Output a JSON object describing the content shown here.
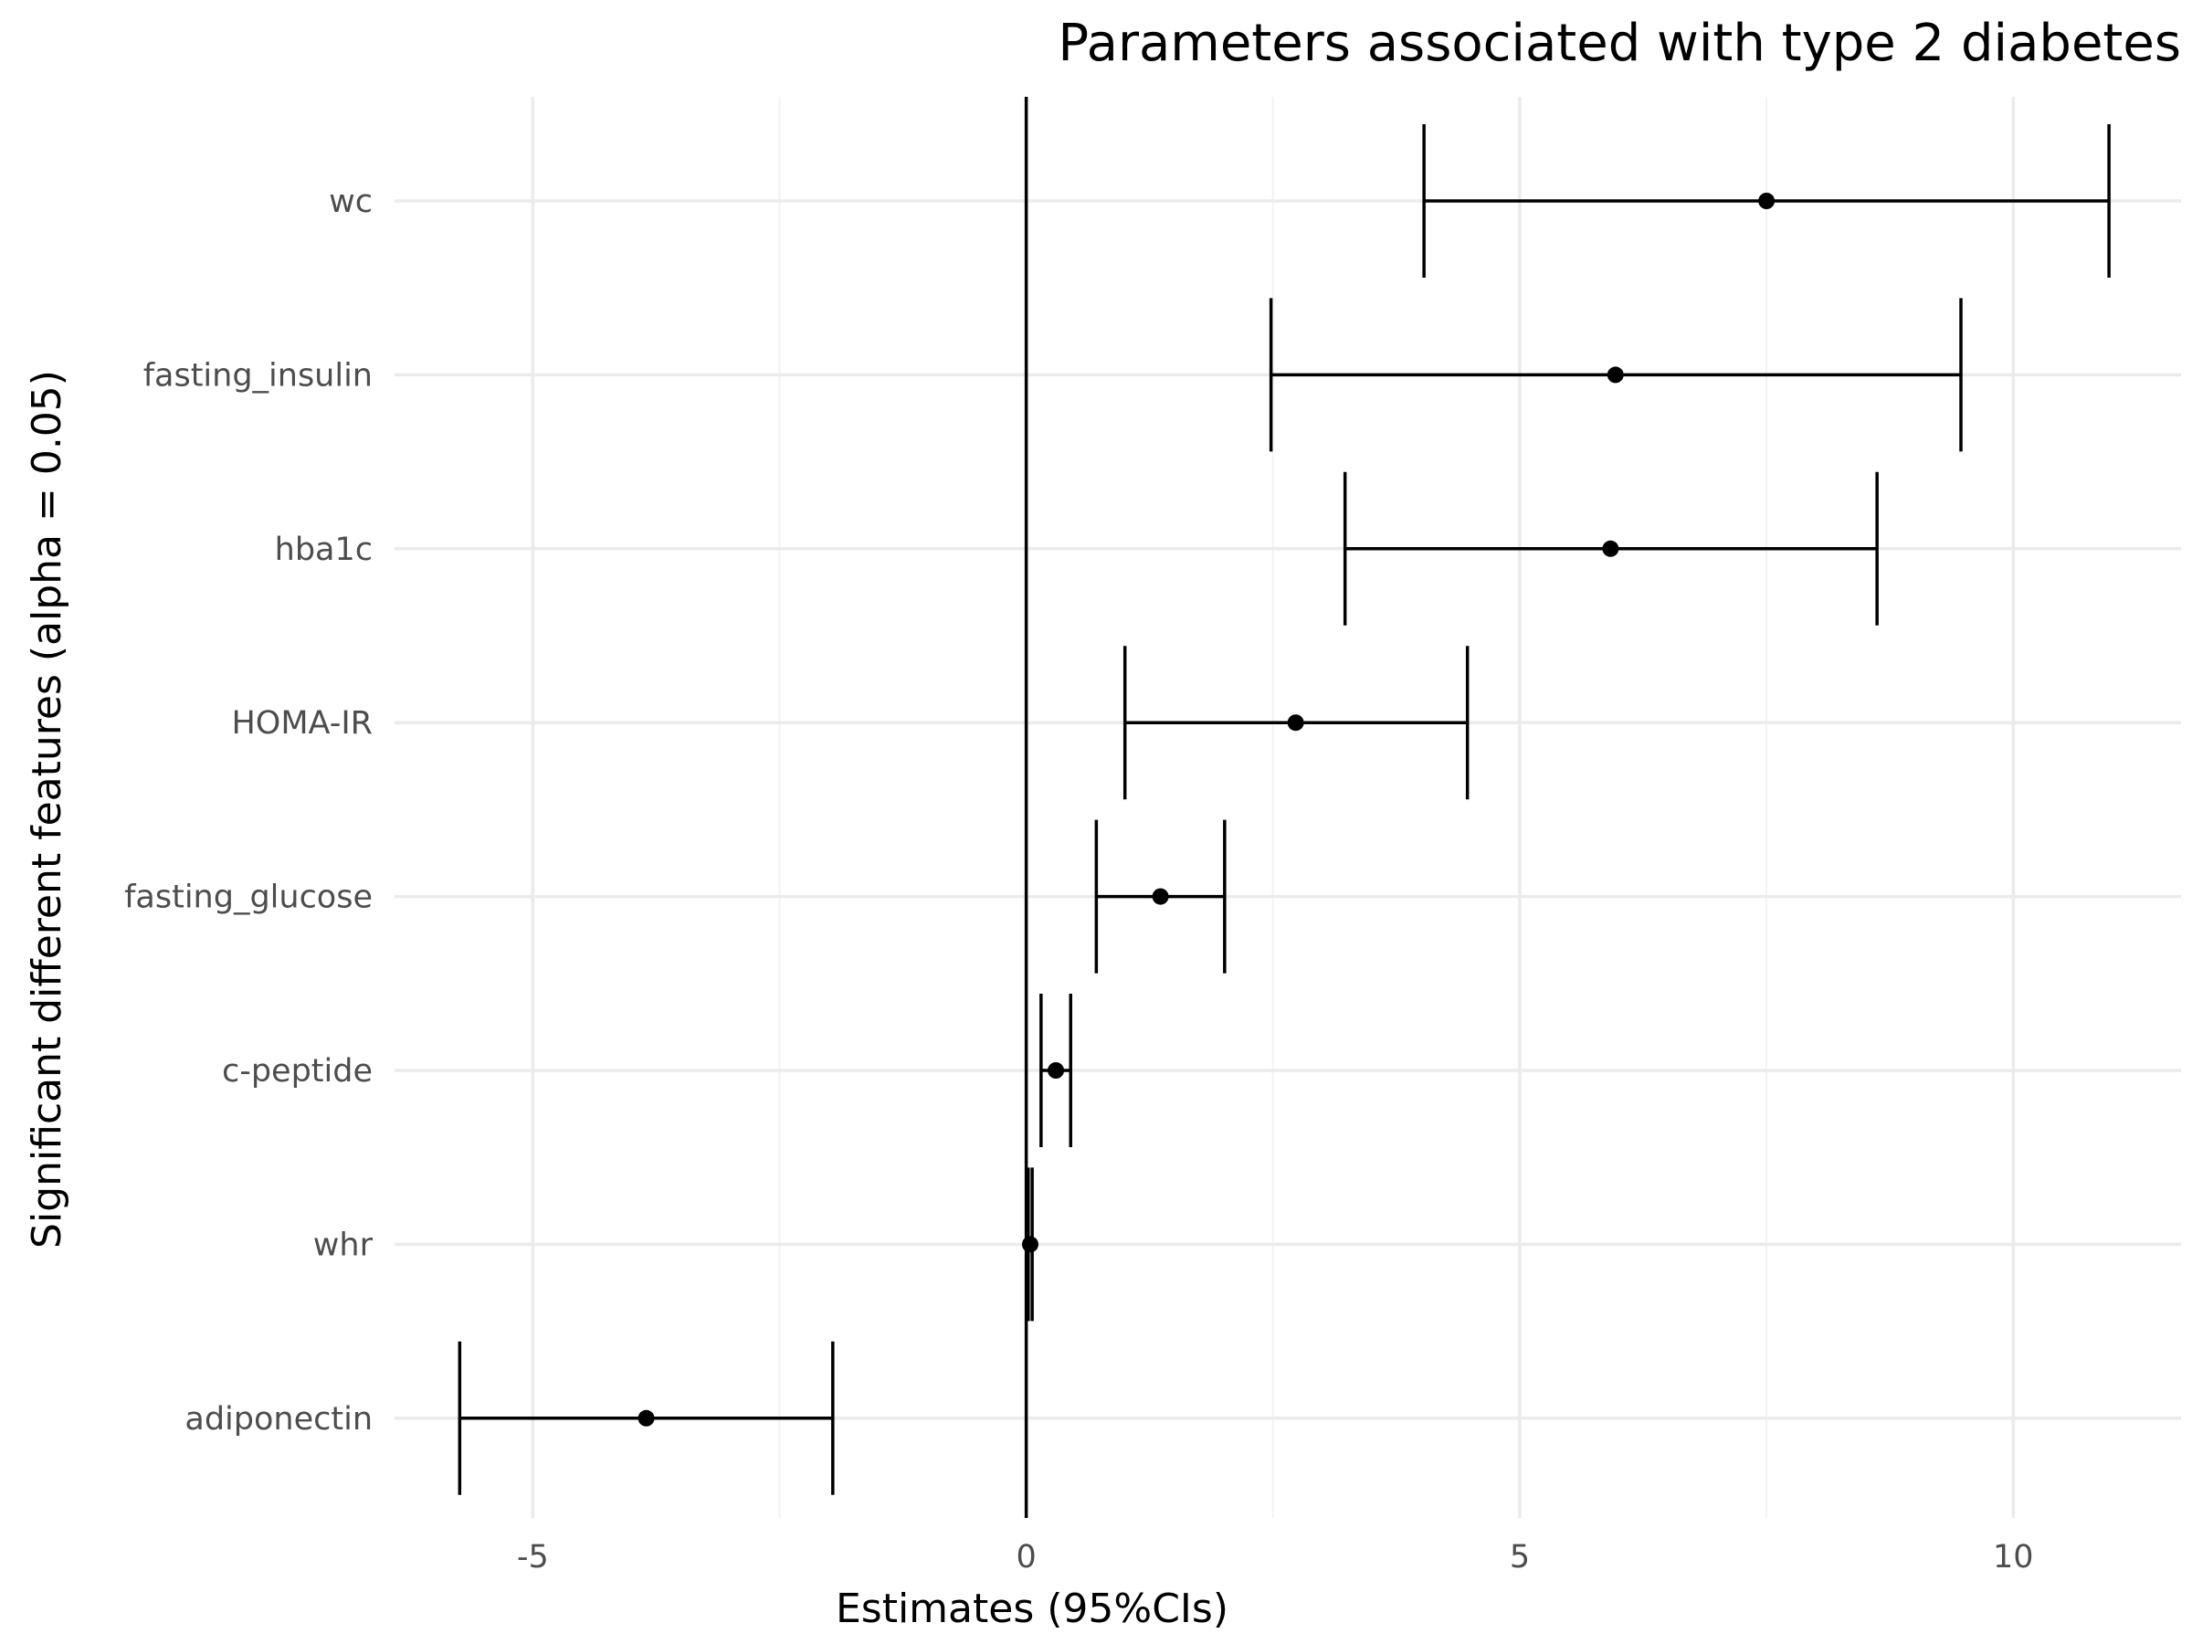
{
  "chart_data": {
    "type": "forest",
    "title": "Parameters associated with type 2 diabetes",
    "xlabel": "Estimates (95%CIs)",
    "ylabel": "Significant different features (alpha = 0.05)",
    "xlim": [
      -6.4,
      11.7
    ],
    "x_ticks": [
      -5,
      0,
      5,
      10
    ],
    "x_tick_labels": [
      "-5",
      "0",
      "5",
      "10"
    ],
    "reference_line": 0,
    "grid": true,
    "features": [
      {
        "name": "wc",
        "estimate": 7.5,
        "lower": 4.03,
        "upper": 10.97
      },
      {
        "name": "fasting_insulin",
        "estimate": 5.97,
        "lower": 2.48,
        "upper": 9.47
      },
      {
        "name": "hba1c",
        "estimate": 5.92,
        "lower": 3.23,
        "upper": 8.62
      },
      {
        "name": "HOMA-IR",
        "estimate": 2.73,
        "lower": 1.0,
        "upper": 4.47
      },
      {
        "name": "fasting_glucose",
        "estimate": 1.36,
        "lower": 0.71,
        "upper": 2.01
      },
      {
        "name": "c-peptide",
        "estimate": 0.3,
        "lower": 0.15,
        "upper": 0.45
      },
      {
        "name": "whr",
        "estimate": 0.04,
        "lower": 0.02,
        "upper": 0.06
      },
      {
        "name": "adiponectin",
        "estimate": -3.85,
        "lower": -5.74,
        "upper": -1.96
      }
    ]
  }
}
